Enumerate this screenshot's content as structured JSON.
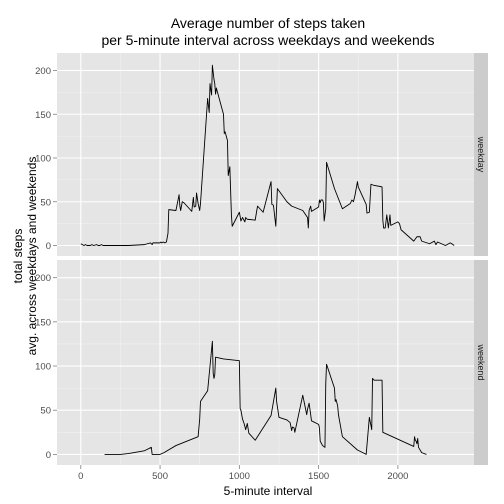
{
  "chart_data": {
    "type": "line",
    "title_lines": [
      "Average number of steps taken",
      "per 5-minute interval across weekdays and weekends"
    ],
    "xlabel": "5-minute interval",
    "ylabel_lines": [
      "total steps",
      "avg. across weekdays and weekends"
    ],
    "xlim": [
      -150,
      2480
    ],
    "ylim": [
      -12,
      220
    ],
    "x_ticks": [
      0,
      500,
      1000,
      1500,
      2000
    ],
    "x_tick_labels": [
      "0",
      "500",
      "1000",
      "1500",
      "2000"
    ],
    "y_ticks": [
      0,
      50,
      100,
      150,
      200
    ],
    "y_tick_labels": [
      "0",
      "50",
      "100",
      "150",
      "200"
    ],
    "grid": true,
    "panels": [
      {
        "label": "weekday",
        "points": [
          [
            0,
            2
          ],
          [
            10,
            1
          ],
          [
            20,
            0
          ],
          [
            30,
            1
          ],
          [
            40,
            0
          ],
          [
            50,
            0
          ],
          [
            60,
            0
          ],
          [
            70,
            1
          ],
          [
            80,
            0
          ],
          [
            100,
            1
          ],
          [
            110,
            0
          ],
          [
            120,
            0
          ],
          [
            130,
            1
          ],
          [
            140,
            0
          ],
          [
            150,
            0
          ],
          [
            160,
            0
          ],
          [
            200,
            0
          ],
          [
            300,
            0
          ],
          [
            400,
            1
          ],
          [
            420,
            2
          ],
          [
            440,
            3
          ],
          [
            450,
            1
          ],
          [
            455,
            3
          ],
          [
            500,
            3
          ],
          [
            505,
            4
          ],
          [
            510,
            3
          ],
          [
            520,
            4
          ],
          [
            530,
            3
          ],
          [
            540,
            4
          ],
          [
            550,
            14
          ],
          [
            555,
            41
          ],
          [
            600,
            40
          ],
          [
            620,
            58
          ],
          [
            625,
            45
          ],
          [
            630,
            40
          ],
          [
            640,
            50
          ],
          [
            650,
            49
          ],
          [
            700,
            39
          ],
          [
            710,
            55
          ],
          [
            715,
            44
          ],
          [
            725,
            45
          ],
          [
            730,
            60
          ],
          [
            740,
            48
          ],
          [
            750,
            40
          ],
          [
            755,
            48
          ],
          [
            800,
            168
          ],
          [
            810,
            152
          ],
          [
            815,
            185
          ],
          [
            825,
            172
          ],
          [
            830,
            206
          ],
          [
            840,
            190
          ],
          [
            845,
            185
          ],
          [
            850,
            173
          ],
          [
            855,
            180
          ],
          [
            900,
            150
          ],
          [
            905,
            128
          ],
          [
            910,
            130
          ],
          [
            925,
            120
          ],
          [
            930,
            80
          ],
          [
            940,
            90
          ],
          [
            950,
            35
          ],
          [
            955,
            22
          ],
          [
            1000,
            38
          ],
          [
            1010,
            28
          ],
          [
            1020,
            32
          ],
          [
            1035,
            27
          ],
          [
            1040,
            32
          ],
          [
            1050,
            30
          ],
          [
            1100,
            29
          ],
          [
            1110,
            40
          ],
          [
            1115,
            45
          ],
          [
            1150,
            38
          ],
          [
            1200,
            73
          ],
          [
            1205,
            47
          ],
          [
            1215,
            46
          ],
          [
            1230,
            22
          ],
          [
            1240,
            65
          ],
          [
            1300,
            50
          ],
          [
            1330,
            45
          ],
          [
            1400,
            40
          ],
          [
            1430,
            32
          ],
          [
            1435,
            20
          ],
          [
            1440,
            40
          ],
          [
            1450,
            45
          ],
          [
            1455,
            39
          ],
          [
            1500,
            44
          ],
          [
            1505,
            52
          ],
          [
            1510,
            49
          ],
          [
            1515,
            52
          ],
          [
            1525,
            52
          ],
          [
            1530,
            49
          ],
          [
            1535,
            28
          ],
          [
            1545,
            42
          ],
          [
            1550,
            95
          ],
          [
            1600,
            65
          ],
          [
            1650,
            42
          ],
          [
            1700,
            48
          ],
          [
            1710,
            52
          ],
          [
            1720,
            50
          ],
          [
            1730,
            58
          ],
          [
            1745,
            73
          ],
          [
            1750,
            67
          ],
          [
            1755,
            65
          ],
          [
            1800,
            47
          ],
          [
            1805,
            37
          ],
          [
            1820,
            38
          ],
          [
            1830,
            70
          ],
          [
            1845,
            69
          ],
          [
            1900,
            67
          ],
          [
            1905,
            29
          ],
          [
            1910,
            20
          ],
          [
            1920,
            20
          ],
          [
            1930,
            35
          ],
          [
            1940,
            20
          ],
          [
            1950,
            35
          ],
          [
            1955,
            23
          ],
          [
            2000,
            27
          ],
          [
            2010,
            25
          ],
          [
            2020,
            18
          ],
          [
            2100,
            5
          ],
          [
            2120,
            10
          ],
          [
            2140,
            10
          ],
          [
            2150,
            5
          ],
          [
            2200,
            2
          ],
          [
            2230,
            5
          ],
          [
            2240,
            1
          ],
          [
            2250,
            4
          ],
          [
            2300,
            0
          ],
          [
            2330,
            3
          ],
          [
            2340,
            2
          ],
          [
            2355,
            0
          ]
        ]
      },
      {
        "label": "weekend",
        "points": [
          [
            150,
            0
          ],
          [
            250,
            0
          ],
          [
            300,
            1
          ],
          [
            400,
            4
          ],
          [
            445,
            8
          ],
          [
            450,
            0
          ],
          [
            500,
            0
          ],
          [
            525,
            2
          ],
          [
            600,
            10
          ],
          [
            740,
            20
          ],
          [
            750,
            40
          ],
          [
            755,
            60
          ],
          [
            800,
            72
          ],
          [
            830,
            128
          ],
          [
            835,
            92
          ],
          [
            840,
            86
          ],
          [
            845,
            90
          ],
          [
            850,
            110
          ],
          [
            900,
            108
          ],
          [
            1000,
            106
          ],
          [
            1005,
            52
          ],
          [
            1010,
            50
          ],
          [
            1020,
            40
          ],
          [
            1030,
            35
          ],
          [
            1040,
            28
          ],
          [
            1050,
            35
          ],
          [
            1060,
            24
          ],
          [
            1100,
            16
          ],
          [
            1200,
            44
          ],
          [
            1230,
            75
          ],
          [
            1235,
            60
          ],
          [
            1250,
            42
          ],
          [
            1300,
            39
          ],
          [
            1320,
            36
          ],
          [
            1330,
            27
          ],
          [
            1335,
            31
          ],
          [
            1345,
            30
          ],
          [
            1350,
            25
          ],
          [
            1400,
            67
          ],
          [
            1425,
            45
          ],
          [
            1430,
            51
          ],
          [
            1440,
            58
          ],
          [
            1450,
            45
          ],
          [
            1455,
            38
          ],
          [
            1500,
            34
          ],
          [
            1505,
            30
          ],
          [
            1510,
            15
          ],
          [
            1525,
            10
          ],
          [
            1540,
            8
          ],
          [
            1545,
            80
          ],
          [
            1550,
            102
          ],
          [
            1600,
            75
          ],
          [
            1605,
            60
          ],
          [
            1610,
            62
          ],
          [
            1620,
            55
          ],
          [
            1625,
            45
          ],
          [
            1650,
            20
          ],
          [
            1745,
            5
          ],
          [
            1800,
            0
          ],
          [
            1820,
            42
          ],
          [
            1835,
            28
          ],
          [
            1840,
            86
          ],
          [
            1850,
            84
          ],
          [
            1900,
            84
          ],
          [
            1905,
            25
          ],
          [
            2100,
            9
          ],
          [
            2105,
            20
          ],
          [
            2110,
            16
          ],
          [
            2115,
            15
          ],
          [
            2120,
            12
          ],
          [
            2125,
            18
          ],
          [
            2130,
            8
          ],
          [
            2150,
            2
          ],
          [
            2180,
            0
          ]
        ]
      }
    ]
  }
}
